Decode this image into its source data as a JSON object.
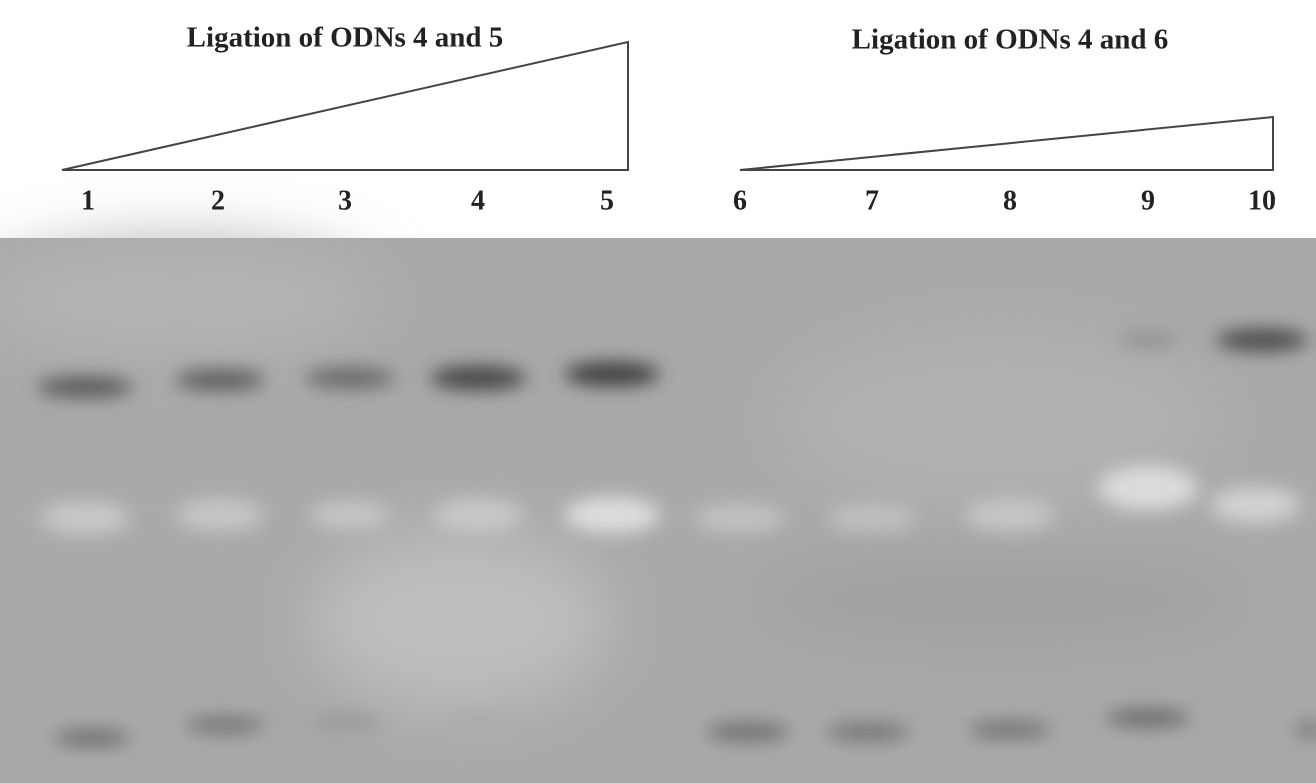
{
  "panels": [
    {
      "title": "Ligation of ODNs 4 and 5",
      "lanes": [
        "1",
        "2",
        "3",
        "4",
        "5"
      ]
    },
    {
      "title": "Ligation of ODNs 4 and 6",
      "lanes": [
        "6",
        "7",
        "8",
        "9",
        "10"
      ]
    }
  ]
}
